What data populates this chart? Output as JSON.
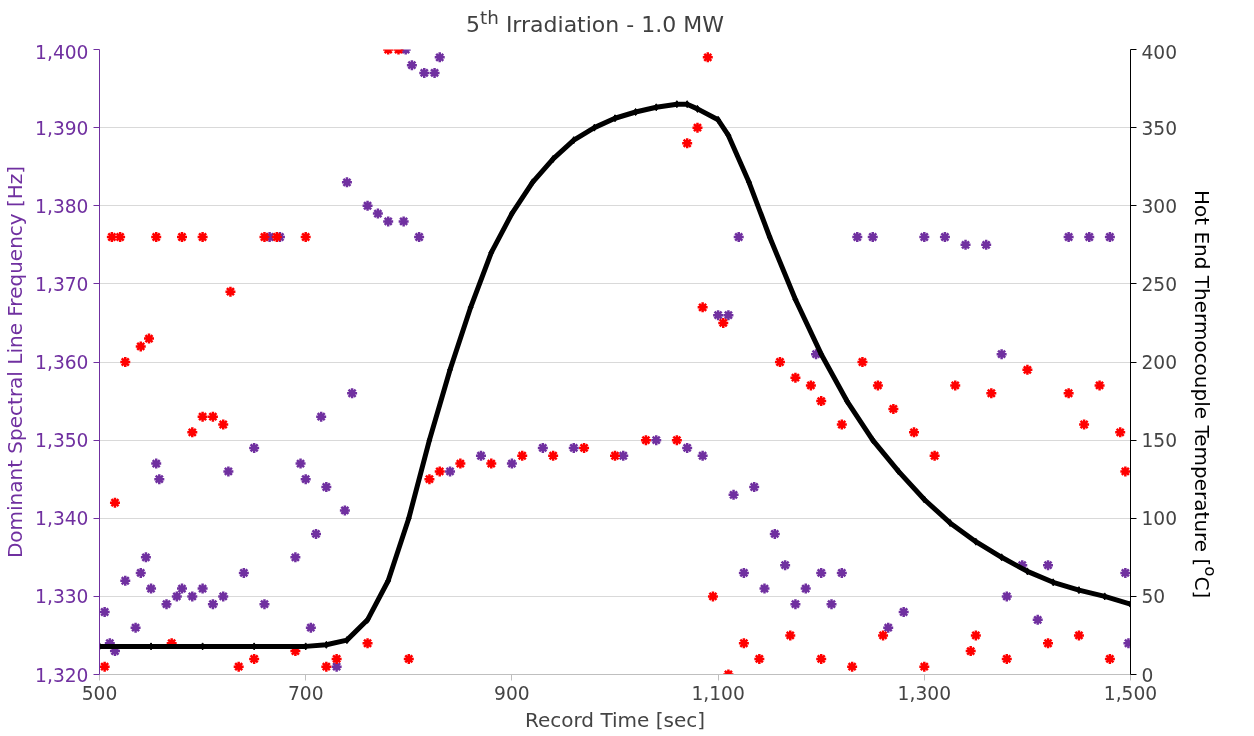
{
  "chart_data": {
    "type": "scatter",
    "title": "5$^{th}$ Irradiation - 1.0 MW",
    "xlabel": "Record Time [sec]",
    "ylabel": "Dominant Spectral Line Frequency [Hz]",
    "y2label": "Hot End Thermocouple Temperature [$^{o}$C]",
    "xlim": [
      500,
      1500
    ],
    "xticks": [
      500,
      700,
      900,
      {
        "value": 1100,
        "label": "1,100"
      },
      {
        "value": 1300,
        "label": "1,300"
      },
      {
        "value": 1500,
        "label": "1,500"
      }
    ],
    "ylim": [
      1320,
      1400
    ],
    "yticks": [
      {
        "value": 1320,
        "label": "1,320"
      },
      {
        "value": 1330,
        "label": "1,330"
      },
      {
        "value": 1340,
        "label": "1,340"
      },
      {
        "value": 1350,
        "label": "1,350"
      },
      {
        "value": 1360,
        "label": "1,360"
      },
      {
        "value": 1370,
        "label": "1,370"
      },
      {
        "value": 1380,
        "label": "1,380"
      },
      {
        "value": 1390,
        "label": "1,390"
      },
      {
        "value": 1400,
        "label": "1,400"
      }
    ],
    "y2lim": [
      0,
      400
    ],
    "y2ticks": [
      0,
      50,
      100,
      150,
      200,
      250,
      300,
      350,
      400
    ],
    "grid": "y",
    "series": [
      {
        "marker": "cross",
        "color": "#7030a0",
        "x": [
          505,
          510,
          515,
          525,
          535,
          540,
          545,
          550,
          555,
          558,
          565,
          575,
          580,
          590,
          600,
          610,
          620,
          625,
          640,
          650,
          660,
          665,
          675,
          690,
          695,
          700,
          705,
          710,
          715,
          720,
          730,
          738,
          745,
          740,
          760,
          770,
          780,
          795,
          810,
          797,
          803,
          815,
          825,
          830,
          840,
          870,
          900,
          930,
          960,
          1008,
          1040,
          1070,
          1085,
          1100,
          1110,
          1115,
          1120,
          1125,
          1135,
          1145,
          1155,
          1165,
          1175,
          1185,
          1195,
          1200,
          1210,
          1220,
          1235,
          1250,
          1265,
          1280,
          1300,
          1320,
          1340,
          1360,
          1375,
          1380,
          1395,
          1410,
          1420,
          1440,
          1460,
          1480,
          1495,
          1498
        ],
        "values": [
          1328,
          1324,
          1323,
          1332,
          1326,
          1333,
          1335,
          1331,
          1347,
          1345,
          1329,
          1330,
          1331,
          1330,
          1331,
          1329,
          1330,
          1346,
          1333,
          1349,
          1329,
          1376,
          1376,
          1335,
          1347,
          1345,
          1326,
          1338,
          1353,
          1344,
          1321,
          1341,
          1356,
          1383,
          1380,
          1379,
          1378,
          1378,
          1376,
          1400,
          1398,
          1397,
          1397,
          1399,
          1346,
          1348,
          1347,
          1349,
          1349,
          1348,
          1350,
          1349,
          1348,
          1366,
          1366,
          1343,
          1376,
          1333,
          1344,
          1331,
          1338,
          1334,
          1329,
          1331,
          1361,
          1333,
          1329,
          1333,
          1376,
          1376,
          1326,
          1328,
          1376,
          1376,
          1375,
          1375,
          1361,
          1330,
          1334,
          1327,
          1334,
          1376,
          1376,
          1376,
          1333,
          1324
        ]
      },
      {
        "marker": "cross",
        "color": "#ff0000",
        "x": [
          505,
          512,
          520,
          515,
          525,
          540,
          548,
          555,
          570,
          590,
          600,
          610,
          620,
          580,
          600,
          627,
          635,
          650,
          660,
          672,
          700,
          690,
          720,
          730,
          760,
          780,
          790,
          800,
          820,
          830,
          850,
          880,
          910,
          940,
          970,
          1000,
          1030,
          1060,
          1070,
          1080,
          1090,
          1085,
          1095,
          1105,
          1110,
          1125,
          1140,
          1160,
          1175,
          1190,
          1200,
          1220,
          1240,
          1255,
          1270,
          1290,
          1310,
          1330,
          1345,
          1365,
          1380,
          1400,
          1420,
          1440,
          1455,
          1470,
          1480,
          1490,
          1495,
          1230,
          1260,
          1300,
          1350,
          1450,
          1200,
          1170
        ],
        "values": [
          1321,
          1376,
          1376,
          1342,
          1360,
          1362,
          1363,
          1376,
          1324,
          1351,
          1353,
          1353,
          1352,
          1376,
          1376,
          1369,
          1321,
          1322,
          1376,
          1376,
          1376,
          1323,
          1321,
          1322,
          1324,
          1400,
          1400,
          1322,
          1345,
          1346,
          1347,
          1347,
          1348,
          1348,
          1349,
          1348,
          1350,
          1350,
          1388,
          1390,
          1399,
          1367,
          1330,
          1365,
          1320,
          1324,
          1322,
          1360,
          1358,
          1357,
          1355,
          1352,
          1360,
          1357,
          1354,
          1351,
          1348,
          1357,
          1323,
          1356,
          1322,
          1359,
          1324,
          1356,
          1352,
          1357,
          1322,
          1351,
          1346,
          1321,
          1325,
          1321,
          1325,
          1325,
          1322,
          1325
        ]
      },
      {
        "type": "line",
        "axis": "y2",
        "marker": "diamond",
        "color": "#000000",
        "x": [
          500,
          550,
          600,
          650,
          700,
          720,
          740,
          760,
          780,
          800,
          820,
          840,
          860,
          880,
          900,
          920,
          940,
          960,
          980,
          1000,
          1020,
          1040,
          1060,
          1070,
          1080,
          1100,
          1110,
          1130,
          1150,
          1175,
          1200,
          1225,
          1250,
          1275,
          1300,
          1325,
          1350,
          1375,
          1400,
          1425,
          1450,
          1475,
          1500
        ],
        "values": [
          18,
          18,
          18,
          18,
          18,
          19,
          22,
          35,
          60,
          100,
          150,
          195,
          235,
          270,
          295,
          315,
          330,
          342,
          350,
          356,
          360,
          363,
          365,
          365,
          362,
          355,
          345,
          315,
          280,
          240,
          205,
          175,
          150,
          130,
          112,
          97,
          85,
          75,
          66,
          59,
          54,
          50,
          45
        ]
      }
    ]
  }
}
